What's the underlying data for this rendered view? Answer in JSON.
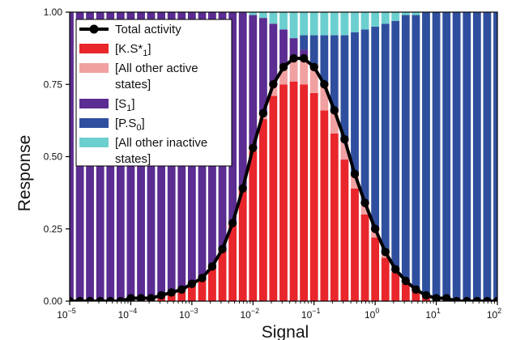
{
  "chart_data": {
    "type": "bar",
    "xlabel": "Signal",
    "ylabel": "Response",
    "x_scale": "log",
    "xlim": [
      1e-05,
      100
    ],
    "ylim": [
      0,
      1
    ],
    "x_ticks": [
      {
        "value": 1e-05,
        "base": "10",
        "exp": "−5"
      },
      {
        "value": 0.0001,
        "base": "10",
        "exp": "−4"
      },
      {
        "value": 0.001,
        "base": "10",
        "exp": "−3"
      },
      {
        "value": 0.01,
        "base": "10",
        "exp": "−2"
      },
      {
        "value": 0.1,
        "base": "10",
        "exp": "−1"
      },
      {
        "value": 1,
        "base": "10",
        "exp": "0"
      },
      {
        "value": 10,
        "base": "10",
        "exp": "1"
      },
      {
        "value": 100,
        "base": "10",
        "exp": "2"
      }
    ],
    "y_ticks": [
      {
        "value": 0,
        "label": "0.00"
      },
      {
        "value": 0.25,
        "label": "0.25"
      },
      {
        "value": 0.5,
        "label": "0.50"
      },
      {
        "value": 0.75,
        "label": "0.75"
      },
      {
        "value": 1,
        "label": "1.00"
      }
    ],
    "colors": {
      "total_activity": "#000000",
      "KS1": "#e8262b",
      "other_active": "#f0a0a0",
      "S1": "#5b2c91",
      "PS0": "#2f4f9e",
      "other_inactive": "#6ccfcf"
    },
    "legend": {
      "position": "upper-left",
      "entries": [
        {
          "key": "total_activity",
          "kind": "line",
          "lines": [
            {
              "text": "Total activity",
              "sub": ""
            }
          ]
        },
        {
          "key": "KS1",
          "kind": "patch",
          "lines": [
            {
              "text": "[K.S*",
              "sub": "1",
              "after": "]"
            }
          ]
        },
        {
          "key": "other_active",
          "kind": "patch",
          "lines": [
            {
              "text": "[All other active",
              "sub": ""
            },
            {
              "text": "states]",
              "sub": ""
            }
          ]
        },
        {
          "key": "S1",
          "kind": "patch",
          "lines": [
            {
              "text": "[S",
              "sub": "1",
              "after": "]"
            }
          ]
        },
        {
          "key": "PS0",
          "kind": "patch",
          "lines": [
            {
              "text": "[P.S",
              "sub": "0",
              "after": "]"
            }
          ]
        },
        {
          "key": "other_inactive",
          "kind": "patch",
          "lines": [
            {
              "text": "[All other inactive",
              "sub": ""
            },
            {
              "text": "states]",
              "sub": ""
            }
          ]
        }
      ]
    },
    "x": [
      1e-05,
      1.47e-05,
      2.15e-05,
      3.16e-05,
      4.64e-05,
      6.81e-05,
      0.0001,
      0.000147,
      0.000215,
      0.000316,
      0.000464,
      0.000681,
      0.001,
      0.00147,
      0.00215,
      0.00316,
      0.00464,
      0.00681,
      0.01,
      0.0147,
      0.0215,
      0.0316,
      0.0464,
      0.0681,
      0.1,
      0.147,
      0.215,
      0.316,
      0.464,
      0.681,
      1,
      1.47,
      2.15,
      3.16,
      4.64,
      6.81,
      10,
      14.7,
      21.5,
      31.6,
      46.4,
      68.1,
      100
    ],
    "series": [
      {
        "name": "[K.S*1]",
        "key": "KS1",
        "values": [
          0.0,
          0.0,
          0.0,
          0.0,
          0.0,
          0.0,
          0.01,
          0.01,
          0.01,
          0.02,
          0.03,
          0.04,
          0.06,
          0.08,
          0.12,
          0.18,
          0.27,
          0.39,
          0.52,
          0.63,
          0.71,
          0.75,
          0.76,
          0.75,
          0.72,
          0.66,
          0.58,
          0.49,
          0.39,
          0.3,
          0.22,
          0.15,
          0.1,
          0.06,
          0.04,
          0.02,
          0.01,
          0.01,
          0.0,
          0.0,
          0.0,
          0.0,
          0.0
        ]
      },
      {
        "name": "[All other active states]",
        "key": "other_active",
        "values": [
          0.0,
          0.0,
          0.0,
          0.0,
          0.0,
          0.0,
          0.0,
          0.0,
          0.0,
          0.0,
          0.0,
          0.0,
          0.0,
          0.0,
          0.0,
          0.0,
          0.0,
          0.0,
          0.01,
          0.02,
          0.04,
          0.06,
          0.08,
          0.09,
          0.09,
          0.09,
          0.08,
          0.07,
          0.05,
          0.04,
          0.03,
          0.02,
          0.01,
          0.01,
          0.0,
          0.0,
          0.0,
          0.0,
          0.0,
          0.0,
          0.0,
          0.0,
          0.0
        ]
      },
      {
        "name": "[S1]",
        "key": "S1",
        "values": [
          1.0,
          1.0,
          1.0,
          1.0,
          1.0,
          1.0,
          0.99,
          0.99,
          0.99,
          0.98,
          0.97,
          0.96,
          0.94,
          0.92,
          0.88,
          0.82,
          0.73,
          0.61,
          0.46,
          0.33,
          0.21,
          0.13,
          0.07,
          0.03,
          0.01,
          0.0,
          0.0,
          0.0,
          0.0,
          0.0,
          0.0,
          0.0,
          0.0,
          0.0,
          0.0,
          0.0,
          0.0,
          0.0,
          0.0,
          0.0,
          0.0,
          0.0,
          0.0
        ]
      },
      {
        "name": "[P.S0]",
        "key": "PS0",
        "values": [
          0.0,
          0.0,
          0.0,
          0.0,
          0.0,
          0.0,
          0.0,
          0.0,
          0.0,
          0.0,
          0.0,
          0.0,
          0.0,
          0.0,
          0.0,
          0.0,
          0.0,
          0.0,
          0.0,
          0.0,
          0.0,
          0.0,
          0.0,
          0.05,
          0.1,
          0.17,
          0.26,
          0.36,
          0.49,
          0.6,
          0.7,
          0.79,
          0.86,
          0.92,
          0.95,
          0.98,
          0.99,
          0.99,
          1.0,
          1.0,
          1.0,
          1.0,
          1.0
        ]
      },
      {
        "name": "[All other inactive states]",
        "key": "other_inactive",
        "values": [
          0.0,
          0.0,
          0.0,
          0.0,
          0.0,
          0.0,
          0.0,
          0.0,
          0.0,
          0.0,
          0.0,
          0.0,
          0.0,
          0.0,
          0.0,
          0.0,
          0.0,
          0.0,
          0.01,
          0.02,
          0.04,
          0.06,
          0.09,
          0.08,
          0.08,
          0.08,
          0.08,
          0.08,
          0.07,
          0.06,
          0.05,
          0.04,
          0.03,
          0.01,
          0.01,
          0.0,
          0.0,
          0.0,
          0.0,
          0.0,
          0.0,
          0.0,
          0.0
        ]
      }
    ],
    "total_activity": [
      0.0,
      0.0,
      0.0,
      0.0,
      0.0,
      0.0,
      0.01,
      0.01,
      0.01,
      0.02,
      0.03,
      0.04,
      0.06,
      0.08,
      0.12,
      0.18,
      0.27,
      0.39,
      0.53,
      0.65,
      0.75,
      0.81,
      0.84,
      0.84,
      0.81,
      0.75,
      0.66,
      0.56,
      0.44,
      0.34,
      0.25,
      0.17,
      0.11,
      0.07,
      0.04,
      0.02,
      0.01,
      0.01,
      0.0,
      0.0,
      0.0,
      0.0,
      0.0
    ]
  }
}
